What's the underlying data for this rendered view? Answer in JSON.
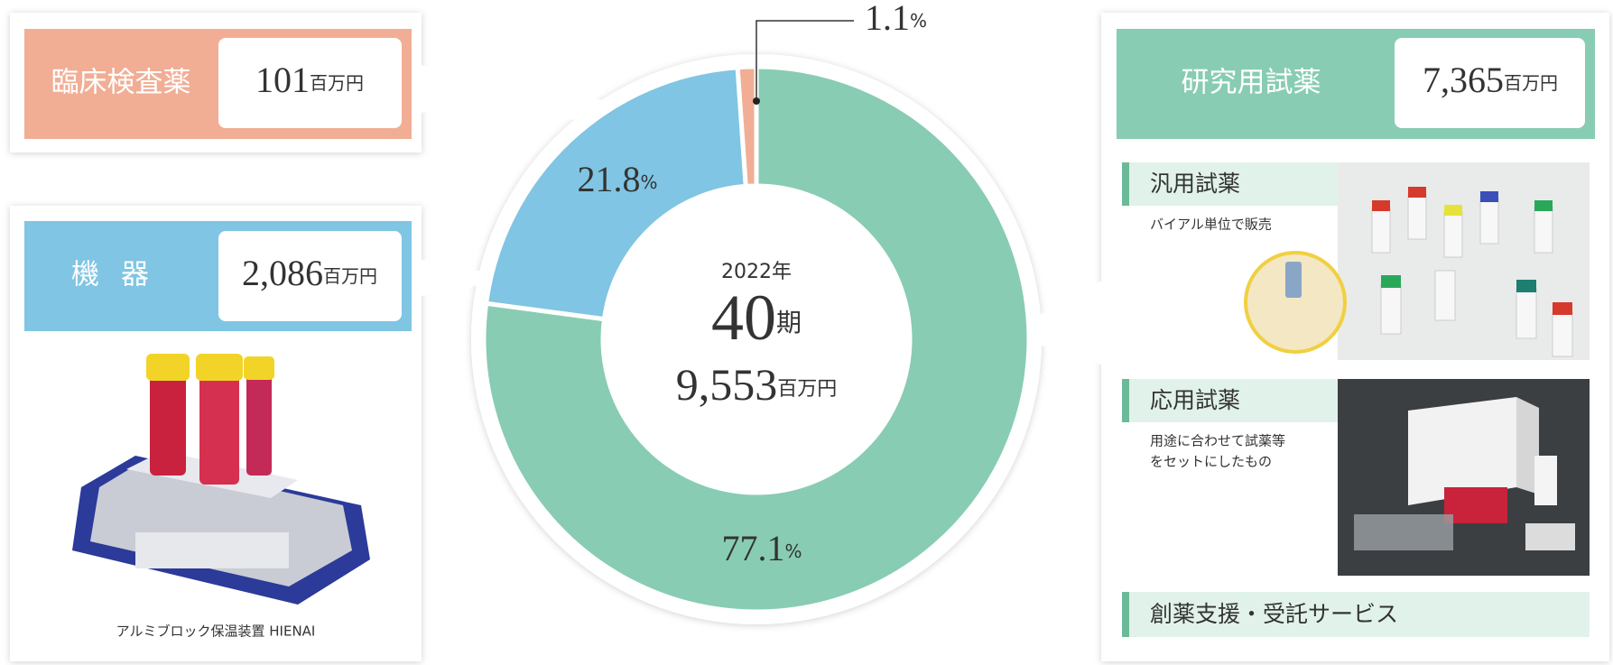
{
  "chart_data": {
    "type": "donut",
    "categories": [
      "研究用試薬",
      "機器",
      "臨床検査薬"
    ],
    "values": [
      77.1,
      21.8,
      1.1
    ],
    "value_labels": [
      "77.1%",
      "21.8%",
      "1.1%"
    ],
    "colors": [
      "#88ccb3",
      "#80c5e3",
      "#f1ae95"
    ],
    "amounts": [
      {
        "value": "7,365",
        "unit": "百万円"
      },
      {
        "value": "2,086",
        "unit": "百万円"
      },
      {
        "value": "101",
        "unit": "百万円"
      }
    ],
    "center": {
      "year": "2022年",
      "period": "40",
      "period_unit": "期",
      "total": "9,553",
      "total_unit": "百万円"
    }
  },
  "research_panel": {
    "items": [
      {
        "title": "汎用試薬",
        "description": [
          "バイアル単位で販売"
        ]
      },
      {
        "title": "応用試薬",
        "description": [
          "用途に合わせて試薬等",
          "をセットにしたもの"
        ]
      },
      {
        "title": "創薬支援・受託サービス"
      }
    ]
  },
  "equipment_panel": {
    "caption": "アルミブロック保温装置 HIENAI"
  }
}
